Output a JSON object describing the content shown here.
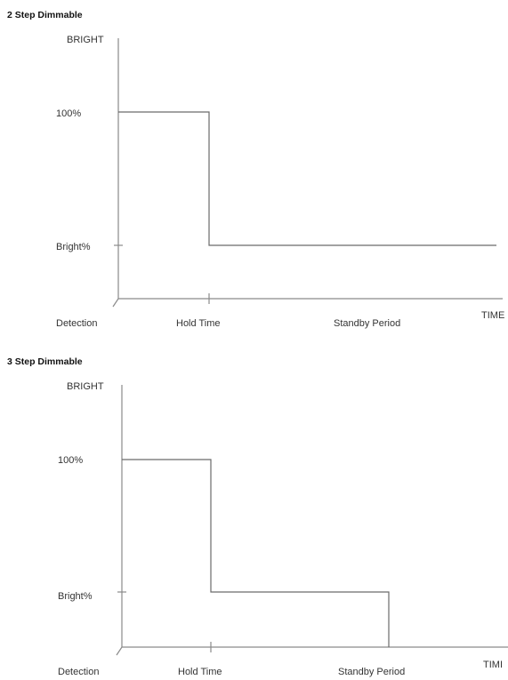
{
  "chart_data": [
    {
      "type": "line",
      "title": "2 Step Dimmable",
      "ylabel": "BRIGHT",
      "xlabel": "TIME",
      "y_ticks": [
        "Bright%",
        "100%"
      ],
      "x_ticks": [
        "Detection",
        "Hold Time",
        "Standby Period"
      ],
      "series": [
        {
          "x": [
            "Detection",
            "Hold Time",
            "Hold Time",
            "end"
          ],
          "y": [
            "100%",
            "100%",
            "Bright%",
            "Bright%"
          ]
        }
      ]
    },
    {
      "type": "line",
      "title": "3 Step Dimmable",
      "ylabel": "BRIGHT",
      "xlabel": "TIMI",
      "y_ticks": [
        "Bright%",
        "100%"
      ],
      "x_ticks": [
        "Detection",
        "Hold Time",
        "Standby Period"
      ],
      "series": [
        {
          "x": [
            "Detection",
            "Hold Time",
            "Hold Time",
            "Standby Period",
            "Standby Period"
          ],
          "y": [
            "100%",
            "100%",
            "Bright%",
            "Bright%",
            "0"
          ]
        }
      ]
    }
  ]
}
